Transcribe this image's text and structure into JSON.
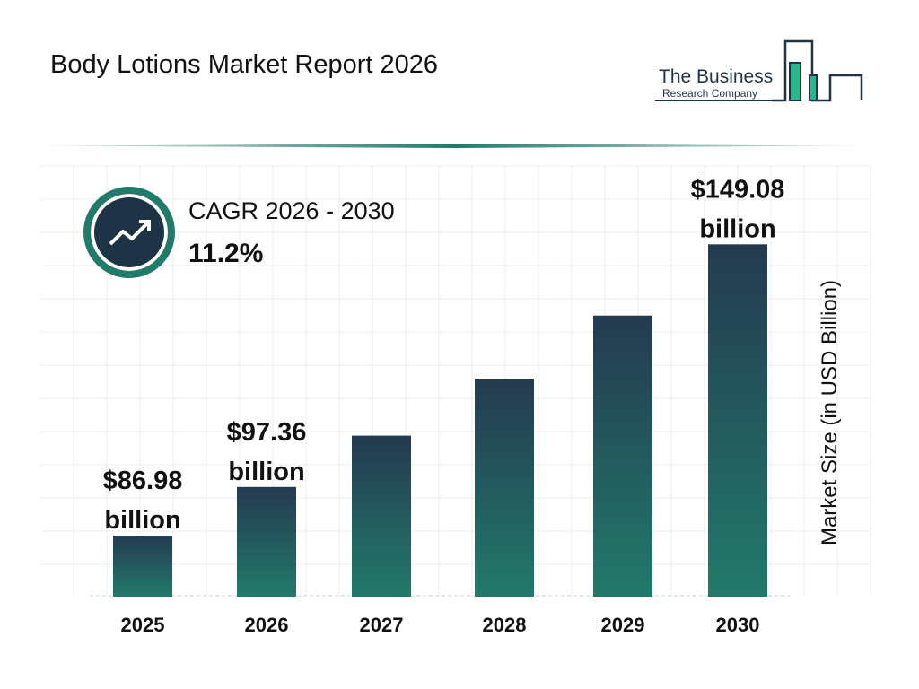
{
  "header": {
    "title": "Body Lotions Market Report 2026"
  },
  "logo": {
    "line1": "The Business",
    "line2": "Research Company"
  },
  "cagr": {
    "label": "CAGR 2026 - 2030",
    "value": "11.2%",
    "icon": "trending-up-icon"
  },
  "colors": {
    "bar_top": "#243a50",
    "bar_bottom": "#227a6a",
    "accent": "#227a6a"
  },
  "chart_data": {
    "type": "bar",
    "categories": [
      "2025",
      "2026",
      "2027",
      "2028",
      "2029",
      "2030"
    ],
    "values": [
      86.98,
      97.36,
      108.3,
      120.4,
      133.9,
      149.08
    ],
    "data_labels": [
      {
        "index": 0,
        "line1": "$86.98",
        "line2": "billion"
      },
      {
        "index": 1,
        "line1": "$97.36",
        "line2": "billion"
      },
      {
        "index": 5,
        "line1": "$149.08",
        "line2": "billion"
      }
    ],
    "title": "Body Lotions Market Report 2026",
    "xlabel": "",
    "ylabel": "Market Size (in USD Billion)",
    "grid": true
  }
}
